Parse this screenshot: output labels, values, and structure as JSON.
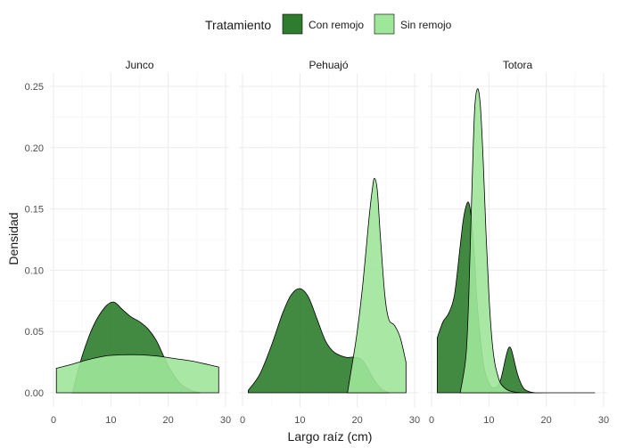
{
  "chart_data": {
    "type": "area",
    "subtype": "density",
    "xlabel": "Largo raíz (cm)",
    "ylabel": "Densidad",
    "xlim": [
      0,
      30
    ],
    "ylim": [
      0,
      0.25
    ],
    "x_ticks": [
      0,
      10,
      20,
      30
    ],
    "y_ticks": [
      0,
      0.05,
      0.1,
      0.15,
      0.2,
      0.25
    ],
    "y_tick_labels": [
      "0.00",
      "0.05",
      "0.10",
      "0.15",
      "0.20",
      "0.25"
    ],
    "grid": true,
    "legend": {
      "title": "Tratamiento",
      "position": "top",
      "items": [
        {
          "label": "Con remojo",
          "color": "#2e7d2e"
        },
        {
          "label": "Sin remojo",
          "color": "#9ee69a"
        }
      ]
    },
    "facets": [
      {
        "name": "Junco",
        "series": [
          {
            "name": "Con remojo",
            "color": "#2e7d2e",
            "x": [
              3.3,
              5,
              7,
              9,
              10.5,
              12,
              13.5,
              15,
              16.5,
              18,
              20,
              22,
              24,
              25.6
            ],
            "y": [
              0.0,
              0.03,
              0.055,
              0.07,
              0.074,
              0.068,
              0.062,
              0.058,
              0.052,
              0.042,
              0.022,
              0.008,
              0.002,
              0.0
            ]
          },
          {
            "name": "Sin remojo",
            "color": "#9ee69a",
            "x": [
              0.5,
              3,
              6,
              9,
              12,
              15,
              18,
              21,
              24,
              27,
              28.8
            ],
            "y": [
              0.02,
              0.023,
              0.027,
              0.03,
              0.031,
              0.031,
              0.03,
              0.028,
              0.026,
              0.023,
              0.021
            ]
          }
        ]
      },
      {
        "name": "Pehuajó",
        "series": [
          {
            "name": "Con remojo",
            "color": "#2e7d2e",
            "x": [
              1,
              3,
              5,
              7,
              8.5,
              10,
              11.5,
              13,
              14.5,
              16,
              18,
              19.5,
              21,
              22.5,
              24,
              25.5
            ],
            "y": [
              0.002,
              0.015,
              0.038,
              0.065,
              0.08,
              0.085,
              0.078,
              0.06,
              0.042,
              0.033,
              0.029,
              0.029,
              0.026,
              0.014,
              0.004,
              0.0
            ]
          },
          {
            "name": "Sin remojo",
            "color": "#9ee69a",
            "x": [
              18.3,
              19,
              20,
              21,
              22,
              22.6,
              23,
              23.5,
              24,
              24.8,
              25.5,
              26.5,
              27.5,
              28.5
            ],
            "y": [
              0.0,
              0.02,
              0.05,
              0.09,
              0.14,
              0.165,
              0.175,
              0.165,
              0.13,
              0.08,
              0.06,
              0.055,
              0.045,
              0.025
            ]
          }
        ]
      },
      {
        "name": "Totora",
        "series": [
          {
            "name": "Con remojo",
            "color": "#2e7d2e",
            "x": [
              1,
              2,
              3,
              4,
              5,
              5.5,
              6,
              6.5,
              7,
              7.5,
              8,
              9,
              10,
              11,
              12,
              13,
              13.5,
              14,
              15,
              16,
              17,
              18
            ],
            "y": [
              0.045,
              0.058,
              0.065,
              0.08,
              0.12,
              0.14,
              0.152,
              0.155,
              0.14,
              0.11,
              0.07,
              0.025,
              0.008,
              0.004,
              0.01,
              0.03,
              0.037,
              0.034,
              0.015,
              0.004,
              0.001,
              0.0
            ]
          },
          {
            "name": "Sin remojo",
            "color": "#9ee69a",
            "x": [
              5,
              6,
              6.5,
              7,
              7.5,
              8,
              8.5,
              9,
              9.5,
              10,
              10.5,
              11,
              11.5,
              12,
              13,
              14,
              16,
              20,
              25,
              28.5
            ],
            "y": [
              0.0,
              0.03,
              0.08,
              0.16,
              0.23,
              0.248,
              0.235,
              0.19,
              0.13,
              0.08,
              0.045,
              0.025,
              0.015,
              0.008,
              0.003,
              0.001,
              0.0,
              0.0,
              0.0,
              0.0
            ]
          }
        ]
      }
    ]
  }
}
